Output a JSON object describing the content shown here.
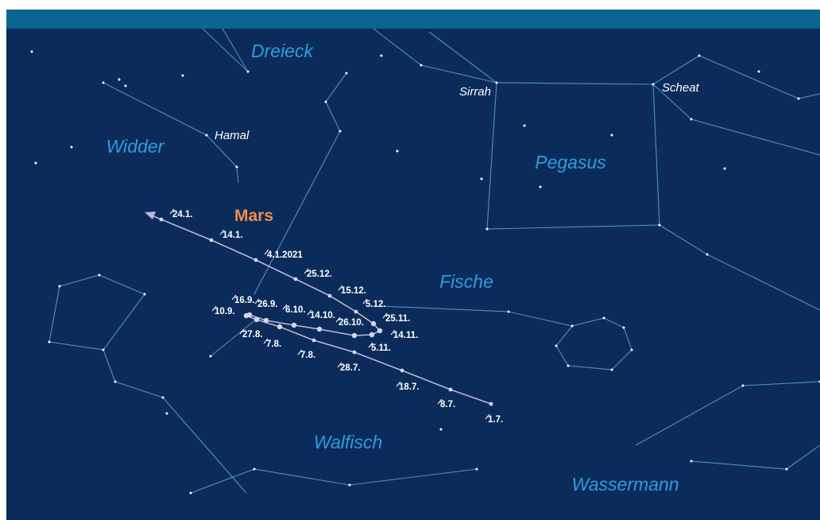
{
  "constellations": [
    "Dreieck",
    "Widder",
    "Pegasus",
    "Fische",
    "Walfisch",
    "Wassermann"
  ],
  "stars": [
    "Hamal",
    "Sirrah",
    "Scheat"
  ],
  "planet": "Mars",
  "dates": [
    "1.7.",
    "8.7.",
    "18.7.",
    "28.7.",
    "7.8.",
    "7.8.",
    "27.8.",
    "10.9.",
    "16.9.",
    "26.9.",
    "6.10.",
    "14.10.",
    "26.10.",
    "5.11.",
    "14.11.",
    "25.11.",
    "5.12.",
    "15.12.",
    "25.12.",
    "4.1.2021",
    "14.1.",
    "24.1."
  ]
}
